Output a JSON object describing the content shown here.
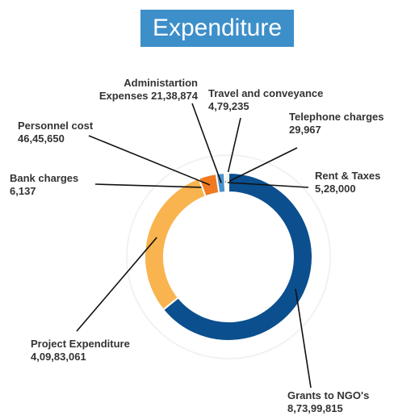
{
  "chart_data": {
    "type": "pie",
    "title": "Expenditure",
    "categories": [
      "Grants to NGO's",
      "Project Expenditure",
      "Bank charges",
      "Personnel cost",
      "Administartion Expenses",
      "Travel and conveyance",
      "Telephone charges",
      "Rent & Taxes"
    ],
    "values": [
      87399815,
      40983061,
      6137,
      4645650,
      2138874,
      479235,
      29967,
      528000
    ],
    "value_labels": [
      "8,73,99,815",
      "4,09,83,061",
      "6,137",
      "46,45,650",
      "21,38,874",
      "4,79,235",
      "29,967",
      "5,28,000"
    ],
    "colors": [
      "#0b4f8f",
      "#f9b44f",
      "#d9d9d9",
      "#f07a1f",
      "#4a92cc",
      "#bfbfbf",
      "#8c8c8c",
      "#f6c873"
    ]
  }
}
